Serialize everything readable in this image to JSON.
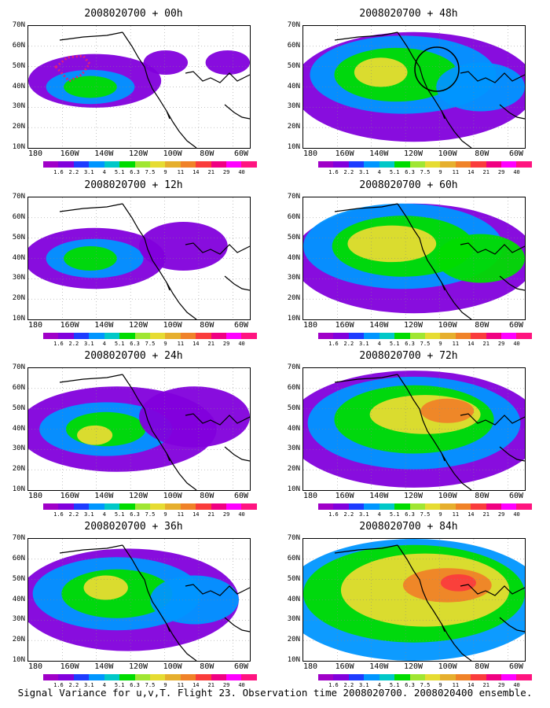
{
  "caption": "Signal Variance for u,v,T. Flight 23. Observation time 2008020700. 2008020400 ensemble.",
  "colorbar": {
    "labels": [
      "1.6",
      "2.2",
      "3.1",
      "4",
      "5.1",
      "6.3",
      "7.5",
      "9",
      "11",
      "14",
      "21",
      "29",
      "40"
    ],
    "colors": [
      "#a000c8",
      "#8200dc",
      "#1e3cff",
      "#0096ff",
      "#00c8c8",
      "#00dc00",
      "#a0e632",
      "#e6dc32",
      "#e6af2d",
      "#f08228",
      "#fa3c3c",
      "#f00082",
      "#ff00ff",
      "#ff1480"
    ]
  },
  "axes": {
    "yticks": [
      "70N",
      "60N",
      "50N",
      "40N",
      "30N",
      "20N",
      "10N"
    ],
    "xticks": [
      "180",
      "160W",
      "140W",
      "120W",
      "100W",
      "80W",
      "60W"
    ]
  },
  "chart_data": [
    {
      "type": "heatmap",
      "title": "2008020700 + 00h",
      "lead_hours": 0,
      "xlim": [
        -190,
        -60
      ],
      "ylim": [
        10,
        70
      ]
    },
    {
      "type": "heatmap",
      "title": "2008020700 + 12h",
      "lead_hours": 12,
      "xlim": [
        -190,
        -60
      ],
      "ylim": [
        10,
        70
      ]
    },
    {
      "type": "heatmap",
      "title": "2008020700 + 24h",
      "lead_hours": 24,
      "xlim": [
        -190,
        -60
      ],
      "ylim": [
        10,
        70
      ]
    },
    {
      "type": "heatmap",
      "title": "2008020700 + 36h",
      "lead_hours": 36,
      "xlim": [
        -190,
        -60
      ],
      "ylim": [
        10,
        70
      ]
    },
    {
      "type": "heatmap",
      "title": "2008020700 + 48h",
      "lead_hours": 48,
      "xlim": [
        -190,
        -60
      ],
      "ylim": [
        10,
        70
      ]
    },
    {
      "type": "heatmap",
      "title": "2008020700 + 60h",
      "lead_hours": 60,
      "xlim": [
        -190,
        -60
      ],
      "ylim": [
        10,
        70
      ]
    },
    {
      "type": "heatmap",
      "title": "2008020700 + 72h",
      "lead_hours": 72,
      "xlim": [
        -190,
        -60
      ],
      "ylim": [
        10,
        70
      ]
    },
    {
      "type": "heatmap",
      "title": "2008020700 + 84h",
      "lead_hours": 84,
      "xlim": [
        -190,
        -60
      ],
      "ylim": [
        10,
        70
      ]
    }
  ]
}
